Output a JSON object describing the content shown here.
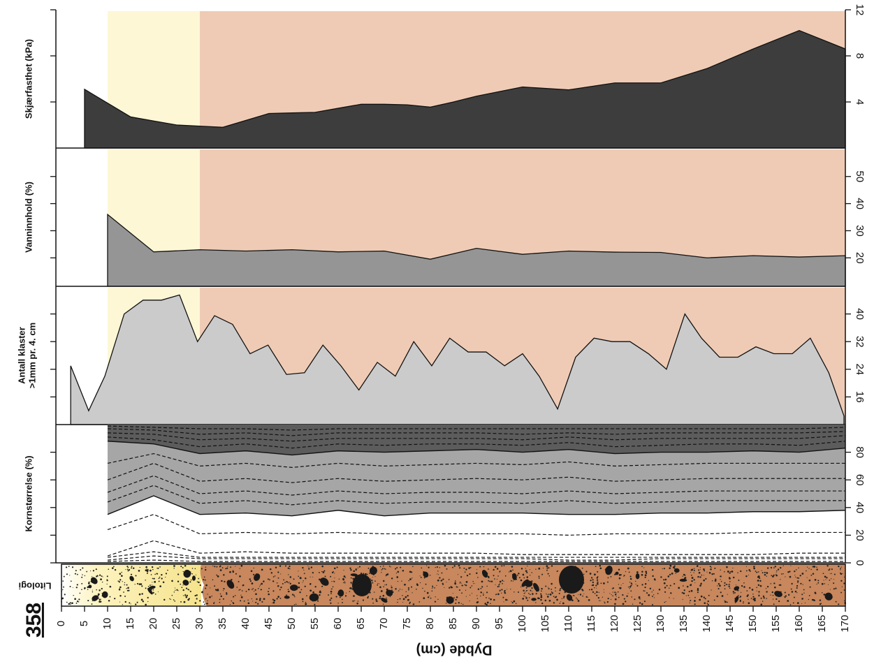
{
  "label": "358",
  "chart_data": {
    "type": "panels",
    "xlabel": "Dybde (cm)",
    "xlim": [
      0,
      170
    ],
    "xticks": [
      0,
      5,
      10,
      15,
      20,
      25,
      30,
      35,
      40,
      45,
      50,
      55,
      60,
      65,
      70,
      75,
      80,
      85,
      90,
      95,
      100,
      105,
      110,
      115,
      120,
      125,
      130,
      135,
      140,
      145,
      150,
      155,
      160,
      165,
      170
    ],
    "zones": [
      {
        "from": 10,
        "to": 30,
        "color": "#fdf7d6"
      },
      {
        "from": 30,
        "to": 170,
        "color": "#efcbb5"
      }
    ],
    "panels": [
      {
        "type": "area",
        "ylabel": "Skjærfasthet (kPa)",
        "shaded": true,
        "x": [
          5,
          15,
          20,
          25,
          30,
          35,
          45,
          50,
          55,
          60,
          65,
          70,
          75,
          80,
          85,
          90,
          100,
          110,
          120,
          130,
          140,
          150,
          160,
          170
        ],
        "series": [
          {
            "color": "#3d3d3d",
            "values": [
              5.1,
              2.7,
              2.35,
              2.0,
              1.9,
              1.8,
              3.0,
              3.05,
              3.1,
              3.45,
              3.8,
              3.8,
              3.75,
              3.55,
              4.0,
              4.5,
              5.3,
              5.05,
              5.65,
              5.65,
              6.9,
              8.6,
              10.2,
              8.6
            ]
          }
        ],
        "ylim": [
          0,
          12
        ],
        "yticks": [
          4,
          8,
          12
        ]
      },
      {
        "type": "area",
        "ylabel": "Vanninnhold (%)",
        "shaded": true,
        "x": [
          10,
          20,
          30,
          40,
          50,
          60,
          70,
          80,
          90,
          100,
          110,
          120,
          130,
          140,
          150,
          160,
          170
        ],
        "series": [
          {
            "color": "#959595",
            "values": [
              36,
              22.2,
              23,
              22.5,
              23,
              22.2,
              22.5,
              19.5,
              23.5,
              21.3,
              22.5,
              22.1,
              22,
              20,
              20.8,
              20.3,
              20.8
            ]
          }
        ],
        "ylim": [
          9.5,
          60.5
        ],
        "yticks": [
          20,
          30,
          40,
          50
        ]
      },
      {
        "type": "area",
        "ylabel": [
          "Antall klaster",
          ">1mm pr. 4. cm"
        ],
        "shaded": true,
        "x": [
          2,
          5.9,
          9.4,
          13.6,
          17.7,
          21.7,
          25.6,
          29.5,
          33.2,
          37.1,
          40.9,
          44.8,
          48.8,
          52.7,
          56.7,
          60.6,
          64.5,
          68.5,
          72.4,
          76.4,
          80.3,
          84.2,
          88.2,
          92.1,
          96.1,
          100,
          103.6,
          107.6,
          111.5,
          115.5,
          119.4,
          123.3,
          127.3,
          131.2,
          135.2,
          138.8,
          142.7,
          146.7,
          150.6,
          154.5,
          158.5,
          162.4,
          166.4,
          169.7
        ],
        "series": [
          {
            "color": "#cbcbcb",
            "values": [
              25,
              12,
              22,
              40,
              44,
              44,
              45.5,
              32,
              39.5,
              37,
              28.5,
              31,
              22.5,
              23,
              31,
              25,
              18,
              26,
              22,
              32,
              25,
              33,
              29,
              29,
              25,
              28.5,
              22,
              12.5,
              27.5,
              33,
              32,
              32,
              28.5,
              24,
              40,
              33,
              27.5,
              27.5,
              30.5,
              28.5,
              28.5,
              33,
              23,
              10.5
            ]
          }
        ],
        "ylim": [
          8,
          48
        ],
        "yticks": [
          16,
          24,
          32,
          40
        ]
      },
      {
        "type": "lines",
        "ylabel": "Kornstørrelse (%)",
        "shaded": false,
        "x": [
          10,
          20,
          30,
          40,
          50,
          60,
          70,
          80,
          90,
          100,
          110,
          120,
          130,
          140,
          150,
          160,
          170
        ],
        "series": [
          {
            "dash": false,
            "fill": "#a6a6a6",
            "values": [
              35,
              48.5,
              35,
              36,
              34,
              38,
              34,
              36,
              36,
              36,
              35,
              35,
              36,
              36,
              37,
              37,
              38
            ]
          },
          {
            "dash": false,
            "fill": "#5c5c5c",
            "values": [
              88,
              86,
              79,
              81,
              78,
              81,
              80,
              81,
              82,
              80,
              82,
              79,
              80,
              80,
              81,
              80,
              83
            ]
          },
          {
            "dash": true,
            "fill": null,
            "values": [
              44,
              56,
              43,
              45,
              42,
              45,
              43,
              44,
              44,
              43,
              45,
              43,
              44,
              45,
              45,
              45,
              45
            ]
          },
          {
            "dash": true,
            "fill": null,
            "values": [
              51,
              63,
              50,
              52,
              49,
              52,
              50,
              51,
              51,
              50,
              52,
              50,
              51,
              52,
              52,
              52,
              52
            ]
          },
          {
            "dash": true,
            "fill": null,
            "values": [
              60,
              72,
              59,
              61,
              58,
              61,
              59,
              60,
              61,
              60,
              62,
              59,
              60,
              61,
              61,
              61,
              61
            ]
          },
          {
            "dash": true,
            "fill": null,
            "values": [
              72,
              79,
              70,
              72,
              69,
              72,
              70,
              71,
              72,
              71,
              73,
              70,
              71,
              72,
              72,
              72,
              72
            ]
          },
          {
            "dash": true,
            "fill": null,
            "values": [
              91,
              89,
              84,
              86,
              83,
              86,
              85,
              86,
              86,
              85,
              87,
              84,
              85,
              86,
              86,
              85,
              88
            ]
          },
          {
            "dash": true,
            "fill": null,
            "values": [
              94,
              93,
              89,
              90,
              88,
              90,
              90,
              90,
              90,
              89,
              91,
              89,
              90,
              90,
              90,
              90,
              92
            ]
          },
          {
            "dash": true,
            "fill": null,
            "values": [
              97,
              96,
              93,
              94,
              92,
              94,
              94,
              94,
              94,
              93,
              94,
              93,
              94,
              94,
              94,
              94,
              95
            ]
          },
          {
            "dash": true,
            "fill": null,
            "values": [
              99,
              98,
              97,
              97,
              96,
              97,
              97,
              97,
              97,
              97,
              97,
              97,
              97,
              97,
              97,
              97,
              98
            ]
          },
          {
            "dash": true,
            "fill": null,
            "values": [
              24,
              35,
              21,
              22,
              21,
              22,
              21,
              21,
              21,
              21,
              20,
              21,
              21,
              21,
              22,
              22,
              22
            ]
          },
          {
            "dash": true,
            "fill": null,
            "values": [
              5,
              16,
              7,
              8,
              7,
              7,
              7,
              7,
              7,
              6,
              6,
              6,
              6,
              6,
              6,
              7,
              7
            ]
          },
          {
            "dash": true,
            "fill": null,
            "values": [
              4,
              8,
              4,
              4,
              4,
              4,
              4,
              4,
              4,
              4,
              4,
              4,
              4,
              4,
              4,
              4,
              4
            ]
          },
          {
            "dash": true,
            "fill": null,
            "values": [
              2,
              5,
              3,
              3,
              3,
              3,
              3,
              3,
              3,
              3,
              2,
              2,
              3,
              3,
              3,
              3,
              3
            ]
          },
          {
            "dash": true,
            "fill": null,
            "values": [
              1,
              2,
              1,
              1,
              1,
              1,
              1,
              1,
              1,
              1,
              1,
              1,
              1,
              1,
              1,
              1,
              1
            ]
          }
        ],
        "ylim": [
          0,
          100
        ],
        "yticks": [
          0,
          20,
          40,
          60,
          80
        ]
      },
      {
        "type": "lithology",
        "ylabel": "Litologi"
      }
    ]
  }
}
